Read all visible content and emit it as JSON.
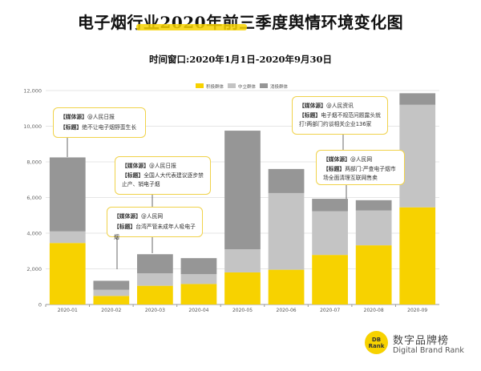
{
  "title": "电子烟行业2020年前三季度舆情环境变化图",
  "subtitle": "时间窗口:2020年1月1日-2020年9月30日",
  "colors": {
    "positive": "#f7d200",
    "neutral": "#c4c4c4",
    "negative": "#969696",
    "border": "#f0d24a"
  },
  "chart_data": {
    "type": "bar",
    "stacked": true,
    "categories": [
      "2020-01",
      "2020-02",
      "2020-03",
      "2020-04",
      "2020-05",
      "2020-06",
      "2020-07",
      "2020-08",
      "2020-09"
    ],
    "ylim": [
      0,
      12000
    ],
    "yticks": [
      0,
      2000,
      4000,
      6000,
      8000,
      10000,
      12000
    ],
    "ytick_labels": [
      "0",
      "2,000",
      "4,000",
      "6,000",
      "8,000",
      "10,000",
      "12,000"
    ],
    "series": [
      {
        "name": "积极群体",
        "values": [
          3450,
          480,
          1050,
          1150,
          1800,
          1950,
          2780,
          3320,
          5450
        ]
      },
      {
        "name": "中立群体",
        "values": [
          650,
          350,
          700,
          550,
          1300,
          4300,
          2450,
          1950,
          5750
        ]
      },
      {
        "name": "消极群体",
        "values": [
          4150,
          500,
          1070,
          900,
          6650,
          1350,
          700,
          580,
          650
        ]
      }
    ],
    "legend_position": "top"
  },
  "annotations": [
    {
      "source_label": "【媒体源】",
      "source": "@人民日报",
      "title_label": "【标题】",
      "title": "绝不让电子烟野蛮生长"
    },
    {
      "source_label": "【媒体源】",
      "source": "@人民日报",
      "title_label": "【标题】",
      "title": "全国人大代表建议逐步禁止产、销电子烟"
    },
    {
      "source_label": "【媒体源】",
      "source": "@人民网",
      "title_label": "【标题】",
      "title": "台湾严管未成年人吸电子烟"
    },
    {
      "source_label": "【媒体源】",
      "source": "@人民资讯",
      "title_label": "【标题】",
      "title": "电子烟不规范问题露头就打!两部门约谈相关企业136家"
    },
    {
      "source_label": "【媒体源】",
      "source": "@人民网",
      "title_label": "【标题】",
      "title": "两部门:严查电子烟市场全面清理互联网售卖"
    }
  ],
  "footer": {
    "logo_top": "DB",
    "logo_bottom": "Rank",
    "cn": "数字品牌榜",
    "en": "Digital Brand Rank"
  }
}
